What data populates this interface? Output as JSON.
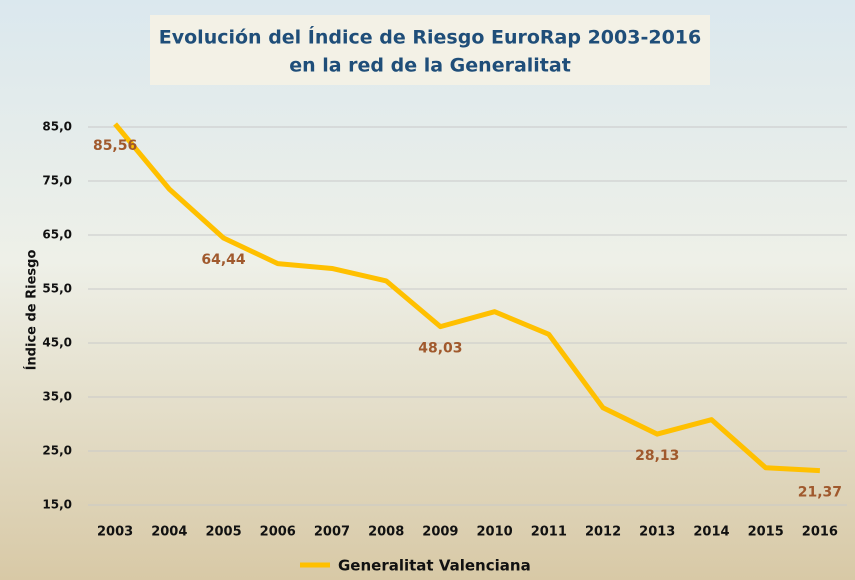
{
  "chart_data": {
    "type": "line",
    "title": [
      "Evolución del Índice de Riesgo EuroRap 2003-2016",
      "en la red de la Generalitat"
    ],
    "y_label": "Índice de Riesgo",
    "categories": [
      "2003",
      "2004",
      "2005",
      "2006",
      "2007",
      "2008",
      "2009",
      "2010",
      "2011",
      "2012",
      "2013",
      "2014",
      "2015",
      "2016"
    ],
    "series": [
      {
        "name": "Generalitat Valenciana",
        "color": "#ffc000",
        "values": [
          85.56,
          73.5,
          64.44,
          59.7,
          58.8,
          56.5,
          48.03,
          50.8,
          46.6,
          33.0,
          28.13,
          30.8,
          21.9,
          21.37
        ],
        "value_labels": [
          "85,56",
          null,
          "64,44",
          null,
          null,
          null,
          "48,03",
          null,
          null,
          null,
          "28,13",
          null,
          null,
          "21,37"
        ]
      }
    ],
    "ylim": [
      15,
      90
    ],
    "yticks": [
      {
        "value": 15,
        "label": "15,0"
      },
      {
        "value": 25,
        "label": "25,0"
      },
      {
        "value": 35,
        "label": "35,0"
      },
      {
        "value": 45,
        "label": "45,0"
      },
      {
        "value": 55,
        "label": "55,0"
      },
      {
        "value": 65,
        "label": "65,0"
      },
      {
        "value": 75,
        "label": "75,0"
      },
      {
        "value": 85,
        "label": "85,0"
      }
    ],
    "grid": true,
    "legend": "bottom"
  }
}
